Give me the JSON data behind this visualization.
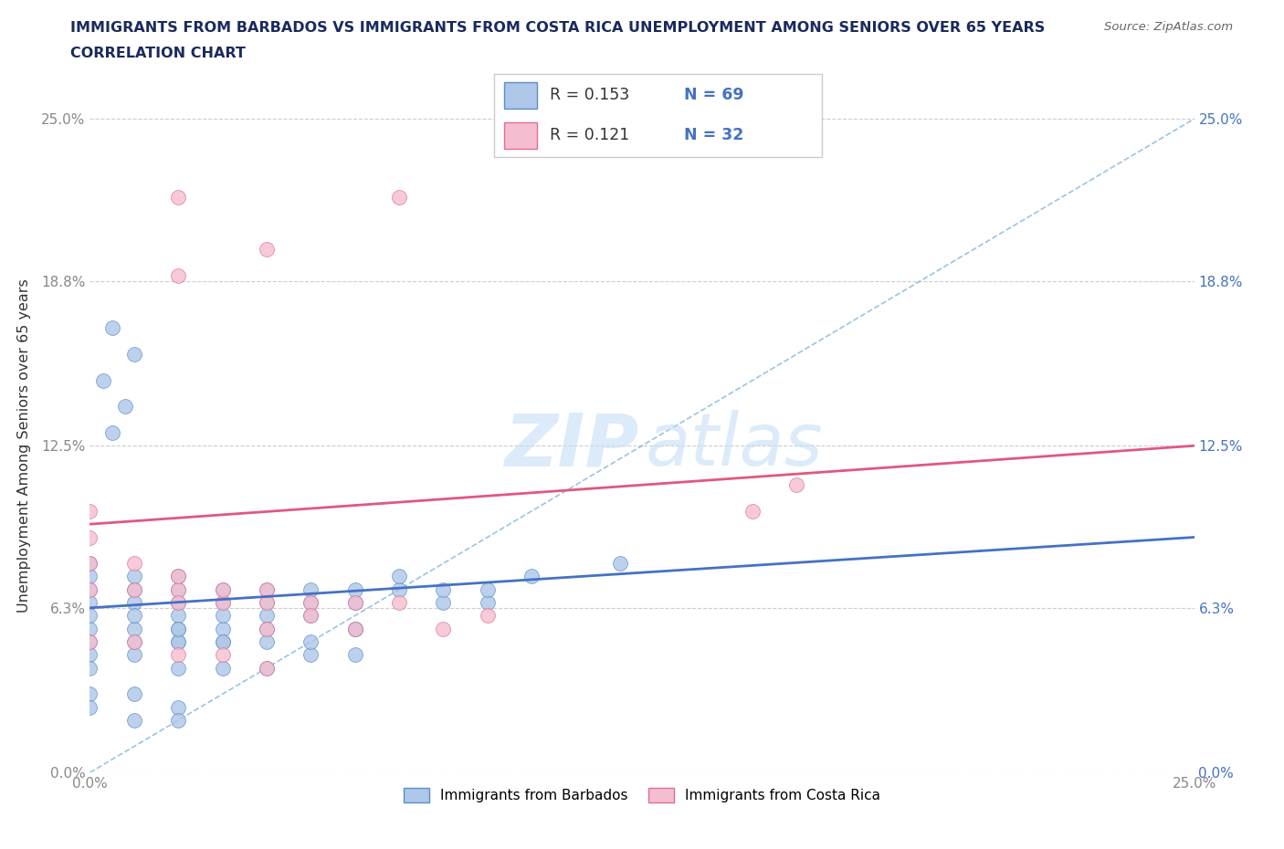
{
  "title_line1": "IMMIGRANTS FROM BARBADOS VS IMMIGRANTS FROM COSTA RICA UNEMPLOYMENT AMONG SENIORS OVER 65 YEARS",
  "title_line2": "CORRELATION CHART",
  "source_text": "Source: ZipAtlas.com",
  "ylabel": "Unemployment Among Seniors over 65 years",
  "xlim": [
    0.0,
    0.25
  ],
  "ylim": [
    0.0,
    0.25
  ],
  "ytick_labels": [
    "0.0%",
    "6.3%",
    "12.5%",
    "18.8%",
    "25.0%"
  ],
  "ytick_values": [
    0.0,
    0.063,
    0.125,
    0.188,
    0.25
  ],
  "color_barbados_fill": "#aec6e8",
  "color_barbados_edge": "#5b8fc9",
  "color_costa_rica_fill": "#f5bdd0",
  "color_costa_rica_edge": "#e07090",
  "color_trend_barbados": "#4472c4",
  "color_trend_costa_rica": "#e05880",
  "color_diagonal": "#7ab0d4",
  "color_right_axis": "#4472c4",
  "color_left_axis": "#888888",
  "color_title": "#1a2a5e",
  "legend_label1": "Immigrants from Barbados",
  "legend_label2": "Immigrants from Costa Rica",
  "watermark_zip_color": "#c5dff5",
  "watermark_atlas_color": "#c5dff5",
  "barbados_x": [
    0.005,
    0.008,
    0.01,
    0.005,
    0.003,
    0.0,
    0.0,
    0.0,
    0.0,
    0.0,
    0.0,
    0.0,
    0.0,
    0.01,
    0.01,
    0.01,
    0.01,
    0.01,
    0.02,
    0.02,
    0.02,
    0.02,
    0.02,
    0.02,
    0.03,
    0.03,
    0.03,
    0.03,
    0.03,
    0.04,
    0.04,
    0.04,
    0.04,
    0.05,
    0.05,
    0.05,
    0.06,
    0.06,
    0.06,
    0.07,
    0.07,
    0.08,
    0.08,
    0.09,
    0.09,
    0.1,
    0.12,
    0.0,
    0.01,
    0.01,
    0.02,
    0.02,
    0.02,
    0.03,
    0.03,
    0.04,
    0.04,
    0.05,
    0.05,
    0.06,
    0.06,
    0.0,
    0.0,
    0.01,
    0.01,
    0.02,
    0.02
  ],
  "barbados_y": [
    0.17,
    0.14,
    0.16,
    0.13,
    0.15,
    0.07,
    0.065,
    0.055,
    0.06,
    0.05,
    0.075,
    0.08,
    0.045,
    0.07,
    0.065,
    0.055,
    0.075,
    0.06,
    0.065,
    0.07,
    0.055,
    0.06,
    0.075,
    0.05,
    0.065,
    0.07,
    0.055,
    0.06,
    0.05,
    0.065,
    0.06,
    0.055,
    0.07,
    0.065,
    0.06,
    0.07,
    0.065,
    0.07,
    0.055,
    0.07,
    0.075,
    0.065,
    0.07,
    0.065,
    0.07,
    0.075,
    0.08,
    0.04,
    0.045,
    0.05,
    0.04,
    0.05,
    0.055,
    0.04,
    0.05,
    0.04,
    0.05,
    0.045,
    0.05,
    0.045,
    0.055,
    0.03,
    0.025,
    0.03,
    0.02,
    0.025,
    0.02
  ],
  "costa_rica_x": [
    0.02,
    0.07,
    0.04,
    0.02,
    0.0,
    0.0,
    0.0,
    0.0,
    0.01,
    0.01,
    0.02,
    0.02,
    0.02,
    0.03,
    0.03,
    0.04,
    0.04,
    0.04,
    0.05,
    0.05,
    0.06,
    0.06,
    0.07,
    0.08,
    0.09,
    0.15,
    0.16,
    0.0,
    0.01,
    0.02,
    0.03,
    0.04
  ],
  "costa_rica_y": [
    0.22,
    0.22,
    0.2,
    0.19,
    0.08,
    0.09,
    0.07,
    0.1,
    0.08,
    0.07,
    0.07,
    0.065,
    0.075,
    0.065,
    0.07,
    0.065,
    0.07,
    0.055,
    0.065,
    0.06,
    0.065,
    0.055,
    0.065,
    0.055,
    0.06,
    0.1,
    0.11,
    0.05,
    0.05,
    0.045,
    0.045,
    0.04
  ],
  "trend_barb_start": 0.063,
  "trend_barb_end": 0.09,
  "trend_cr_start": 0.095,
  "trend_cr_end": 0.125
}
